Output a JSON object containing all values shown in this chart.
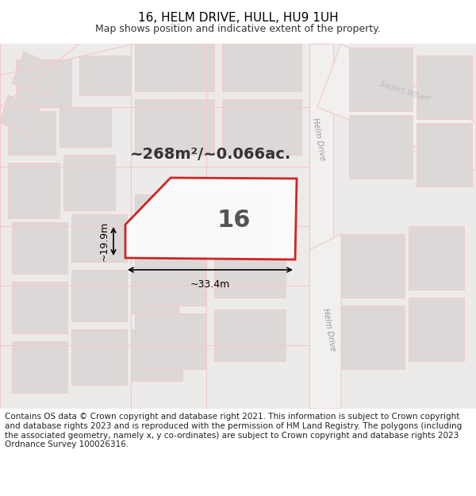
{
  "title": "16, HELM DRIVE, HULL, HU9 1UH",
  "subtitle": "Map shows position and indicative extent of the property.",
  "area_text": "~268m²/~0.066ac.",
  "plot_number": "16",
  "dim_width": "~33.4m",
  "dim_height": "~19.9m",
  "bg_color": "#f0eeee",
  "map_bg": "#e8e4e4",
  "road_color": "#f5c8c8",
  "road_fill": "#ffffff",
  "plot_color": "#cc0000",
  "plot_fill": "#f5f5f5",
  "footer_text": "Contains OS data © Crown copyright and database right 2021. This information is subject to Crown copyright and database rights 2023 and is reproduced with the permission of HM Land Registry. The polygons (including the associated geometry, namely x, y co-ordinates) are subject to Crown copyright and database rights 2023 Ordnance Survey 100026316.",
  "footer_fontsize": 7.5,
  "title_fontsize": 11,
  "subtitle_fontsize": 9
}
